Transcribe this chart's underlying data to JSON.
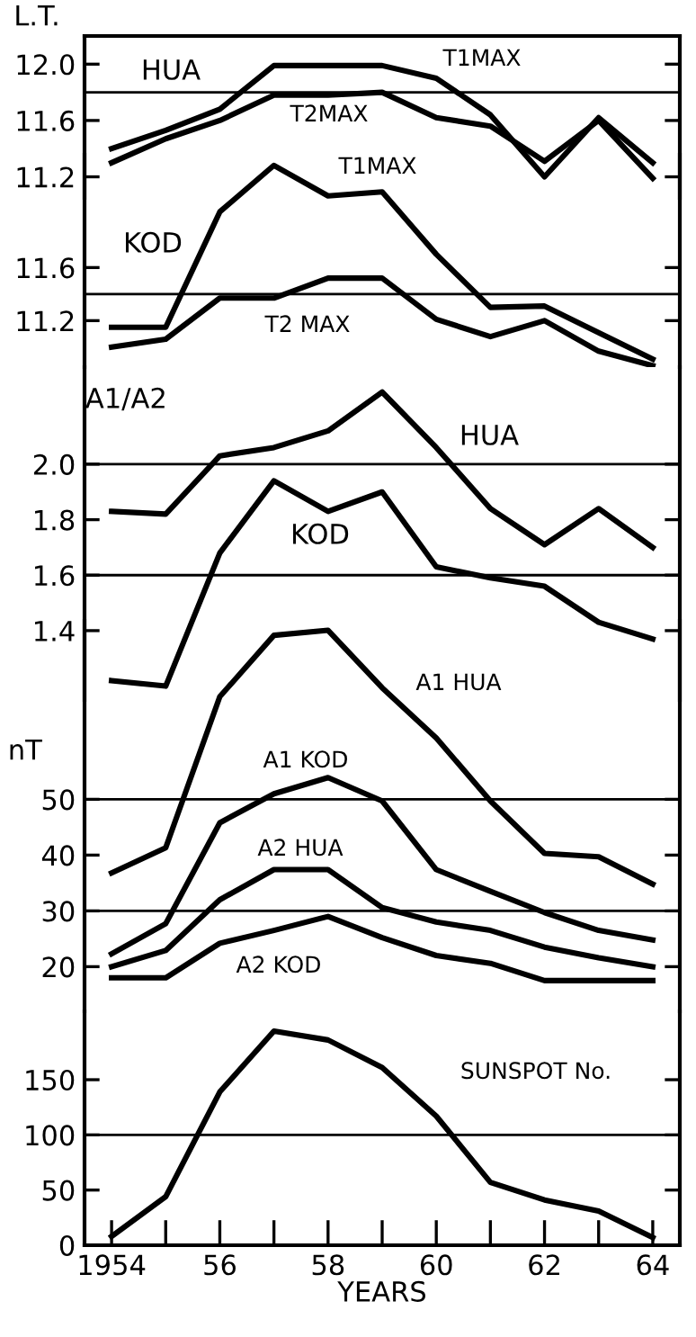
{
  "chart_data": [
    {
      "type": "line",
      "ylabel": "L.T.",
      "x": [
        1954,
        1955,
        1956,
        1957,
        1958,
        1959,
        1960,
        1961,
        1962,
        1963,
        1964
      ],
      "xlim": [
        1953.5,
        1964.5
      ],
      "ylim": [
        11.05,
        12.2
      ],
      "yticks": [
        11.2,
        11.6,
        {
          "value": 12.0,
          "label": "12.0"
        }
      ],
      "tick_labels": "y",
      "line_style": "solid",
      "marker": "none",
      "series": [
        {
          "color": "#000000",
          "values": [
            11.4,
            11.53,
            11.68,
            11.99,
            11.99,
            11.99,
            11.9,
            11.64,
            11.2,
            11.62,
            11.3
          ]
        },
        {
          "color": "#000000",
          "values": [
            11.3,
            11.47,
            11.6,
            11.78,
            11.78,
            11.8,
            11.62,
            11.56,
            11.31,
            11.6,
            11.19
          ]
        }
      ],
      "ref_lines": [
        {
          "axis": "y",
          "value": 11.8,
          "color": "#000000"
        }
      ],
      "annotations": [
        "HUA",
        "T1MAX",
        "T2MAX"
      ]
    },
    {
      "type": "line",
      "x": [
        1954,
        1955,
        1956,
        1957,
        1958,
        1959,
        1960,
        1961,
        1962,
        1963,
        1964
      ],
      "xlim": [
        1953.5,
        1964.5
      ],
      "ylim": [
        10.85,
        12.45
      ],
      "yticks": [
        11.2,
        11.6
      ],
      "tick_labels": "y",
      "line_style": "solid",
      "marker": "none",
      "series": [
        {
          "color": "#000000",
          "values": [
            11.15,
            11.15,
            12.02,
            12.37,
            12.14,
            12.17,
            11.7,
            11.3,
            11.31,
            11.11,
            10.91
          ]
        },
        {
          "color": "#000000",
          "values": [
            11.0,
            11.06,
            11.37,
            11.37,
            11.52,
            11.52,
            11.21,
            11.08,
            11.2,
            10.97,
            10.86
          ]
        }
      ],
      "ref_lines": [
        {
          "axis": "y",
          "value": 11.4,
          "color": "#000000"
        }
      ],
      "annotations": [
        "T1MAX",
        "KOD",
        "T2 MAX"
      ]
    },
    {
      "type": "line",
      "ylabel": "A1/A2",
      "x": [
        1954,
        1955,
        1956,
        1957,
        1958,
        1959,
        1960,
        1961,
        1962,
        1963,
        1964
      ],
      "xlim": [
        1953.5,
        1964.5
      ],
      "ylim": [
        1.15,
        2.35
      ],
      "yticks": [
        1.4,
        1.6,
        1.8,
        {
          "value": 2.0,
          "label": "2.0"
        }
      ],
      "tick_labels": "y",
      "line_style": "solid",
      "marker": "none",
      "series": [
        {
          "color": "#000000",
          "values": [
            1.83,
            1.82,
            2.03,
            2.06,
            2.12,
            2.26,
            2.06,
            1.84,
            1.71,
            1.84,
            1.7
          ]
        },
        {
          "color": "#000000",
          "values": [
            1.22,
            1.2,
            1.68,
            1.94,
            1.83,
            1.9,
            1.63,
            1.59,
            1.56,
            1.43,
            1.37
          ]
        }
      ],
      "ref_lines": [
        {
          "axis": "y",
          "value": 2.0,
          "color": "#000000"
        },
        {
          "axis": "y",
          "value": 1.6,
          "color": "#000000"
        }
      ],
      "annotations": [
        "HUA",
        "KOD"
      ]
    },
    {
      "type": "line",
      "ylabel": "nT",
      "x": [
        1954,
        1955,
        1956,
        1957,
        1958,
        1959,
        1960,
        1961,
        1962,
        1963,
        1964
      ],
      "xlim": [
        1953.5,
        1964.5
      ],
      "ylim": [
        12,
        82
      ],
      "yticks": [
        20,
        30,
        40,
        50
      ],
      "tick_labels": "y",
      "line_style": "solid",
      "marker": "none",
      "series": [
        {
          "color": "#000000",
          "values": [
            36.8,
            41.3,
            68.4,
            79.4,
            80.3,
            70,
            61,
            49.7,
            40.3,
            39.7,
            34.8
          ]
        },
        {
          "color": "#000000",
          "values": [
            22.3,
            27.7,
            45.8,
            51,
            53.9,
            49.7,
            37.4,
            33.5,
            29.7,
            26.5,
            24.8
          ]
        },
        {
          "color": "#000000",
          "values": [
            20,
            22.9,
            32,
            37.4,
            37.4,
            30.6,
            28,
            26.5,
            23.5,
            21.6,
            20
          ]
        },
        {
          "color": "#000000",
          "values": [
            18,
            18,
            24.2,
            26.5,
            29,
            25.2,
            22,
            20.6,
            17.5,
            17.5,
            17.5
          ]
        }
      ],
      "ref_lines": [
        {
          "axis": "y",
          "value": 50,
          "color": "#000000"
        },
        {
          "axis": "y",
          "value": 30,
          "color": "#000000"
        }
      ],
      "annotations": [
        "A1 HUA",
        "A1 KOD",
        "A2 HUA",
        "A2 KOD"
      ]
    },
    {
      "type": "line",
      "xlabel": "YEARS",
      "x": [
        1954,
        1955,
        1956,
        1957,
        1958,
        1959,
        1960,
        1961,
        1962,
        1963,
        1964
      ],
      "xlim": [
        1953.5,
        1964.5
      ],
      "xticks": [
        {
          "value": 1954,
          "label": "1954"
        },
        {
          "value": 1955,
          "label": null
        },
        {
          "value": 1956,
          "label": "56"
        },
        {
          "value": 1957,
          "label": null
        },
        {
          "value": 1958,
          "label": "58"
        },
        {
          "value": 1959,
          "label": null
        },
        {
          "value": 1960,
          "label": "60"
        },
        {
          "value": 1961,
          "label": null
        },
        {
          "value": 1962,
          "label": "62"
        },
        {
          "value": 1963,
          "label": null
        },
        {
          "value": 1964,
          "label": "64"
        }
      ],
      "ylim": [
        0,
        212
      ],
      "yticks": [
        0,
        50,
        100,
        150
      ],
      "line_style": "solid",
      "marker": "none",
      "series": [
        {
          "color": "#000000",
          "values": [
            8,
            44,
            139,
            194,
            186,
            161,
            117,
            57,
            41,
            31,
            7
          ]
        }
      ],
      "ref_lines": [
        {
          "axis": "y",
          "value": 100,
          "color": "#000000"
        }
      ],
      "annotations": [
        "SUNSPOT No."
      ]
    }
  ]
}
